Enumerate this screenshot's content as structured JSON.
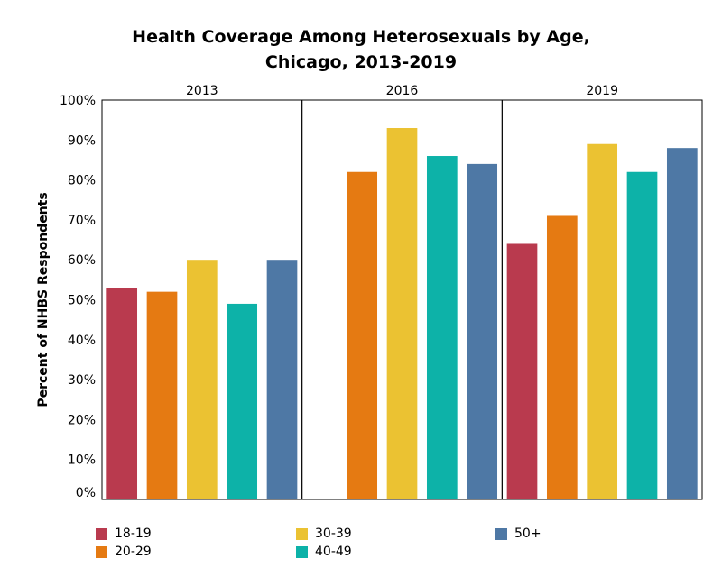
{
  "chart_data": {
    "type": "bar",
    "title_lines": [
      "Health Coverage Among Heterosexuals by Age,",
      "Chicago, 2013-2019"
    ],
    "ylabel": "Percent of NHBS Respondents",
    "ylim": [
      0,
      100
    ],
    "y_ticks": [
      "0%",
      "10%",
      "20%",
      "30%",
      "40%",
      "50%",
      "60%",
      "70%",
      "80%",
      "90%",
      "100%"
    ],
    "panels": [
      "2013",
      "2016",
      "2019"
    ],
    "series": [
      {
        "name": "18-19",
        "color": "#B93A4E",
        "values": [
          53,
          null,
          64
        ]
      },
      {
        "name": "20-29",
        "color": "#E57A12",
        "values": [
          52,
          82,
          71
        ]
      },
      {
        "name": "30-39",
        "color": "#EBC232",
        "values": [
          60,
          93,
          89
        ]
      },
      {
        "name": "40-49",
        "color": "#0DB2A8",
        "values": [
          49,
          86,
          82
        ]
      },
      {
        "name": "50+",
        "color": "#4E78A5",
        "values": [
          60,
          84,
          88
        ]
      }
    ],
    "legend_position": "bottom"
  }
}
